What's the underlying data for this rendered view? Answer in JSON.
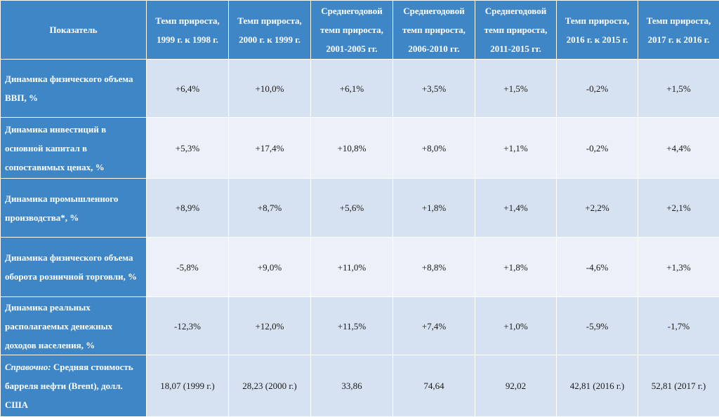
{
  "table": {
    "header": {
      "indicator": "Показатель",
      "columns": [
        "Темп прироста, 1999 г. к 1998 г.",
        "Темп прироста, 2000 г. к 1999 г.",
        "Среднегодовой темп прироста, 2001-2005 гг.",
        "Среднегодовой темп прироста, 2006-2010 гг.",
        "Среднегодовой темп прироста, 2011-2015 гг.",
        "Темп прироста, 2016 г. к 2015 г.",
        "Темп прироста, 2017 г. к 2016 г."
      ]
    },
    "rows": [
      {
        "label": "Динамика физического объема ВВП, %",
        "values": [
          "+6,4%",
          "+10,0%",
          "+6,1%",
          "+3,5%",
          "+1,5%",
          "-0,2%",
          "+1,5%"
        ]
      },
      {
        "label": "Динамика инвестиций в основной капитал в сопоставимых ценах, %",
        "values": [
          "+5,3%",
          "+17,4%",
          "+10,8%",
          "+8,0%",
          "+1,1%",
          "-0,2%",
          "+4,4%"
        ]
      },
      {
        "label": "Динамика промышленного производства*, %",
        "values": [
          "+8,9%",
          "+8,7%",
          "+5,6%",
          "+1,8%",
          "+1,4%",
          "+2,2%",
          "+2,1%"
        ]
      },
      {
        "label": "Динамика физического объема оборота розничной торговли, %",
        "values": [
          "-5,8%",
          "+9,0%",
          "+11,0%",
          "+8,8%",
          "+1,8%",
          "-4,6%",
          "+1,3%"
        ]
      },
      {
        "label": "Динамика реальных располагаемых денежных доходов населения, %",
        "values": [
          "-12,3%",
          "+12,0%",
          "+11,5%",
          "+7,4%",
          "+1,0%",
          "-5,9%",
          "-1,7%"
        ]
      }
    ],
    "reference_row": {
      "label_prefix": "Справочно:",
      "label_rest": " Средняя стоимость барреля нефти (Brent), долл. США",
      "values": [
        "18,07 (1999 г.)",
        "28,23 (2000 г.)",
        "33,86",
        "74,64",
        "92,02",
        "42,81 (2016 г.)",
        "52,81 (2017 г.)"
      ]
    }
  }
}
